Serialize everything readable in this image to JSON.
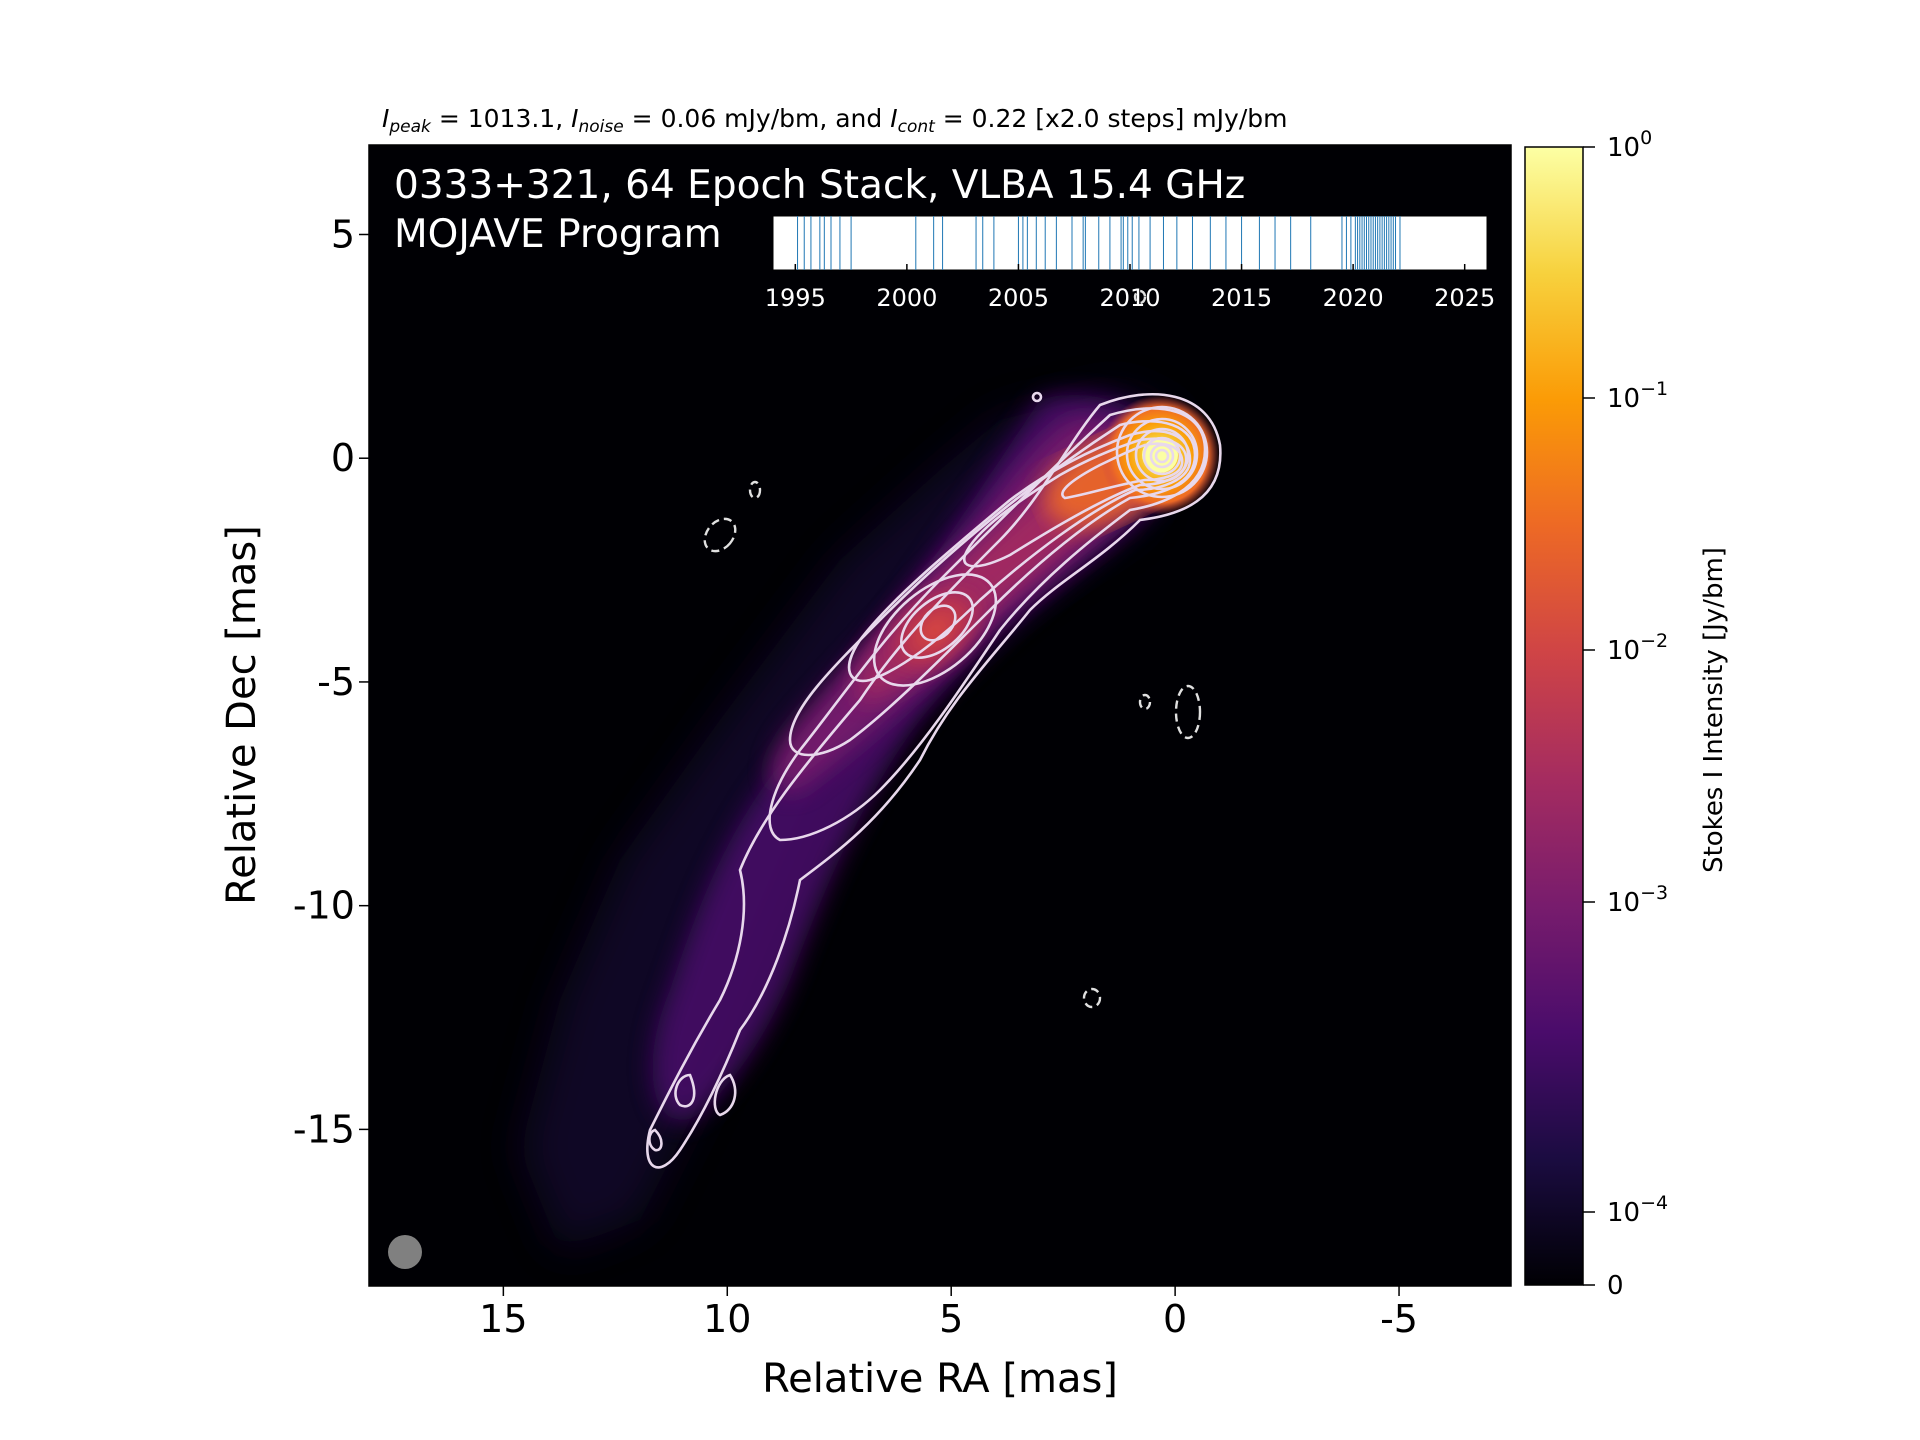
{
  "header": {
    "peak_label": "peak",
    "peak_value": "1013.1",
    "noise_label": "noise",
    "noise_value": "0.06 mJy/bm, and",
    "cont_label": "cont",
    "cont_value": "0.22 [x2.0 steps] mJy/bm"
  },
  "overlay": {
    "line1": "0333+321, 64 Epoch Stack, VLBA 15.4 GHz",
    "line2": "MOJAVE Program"
  },
  "colorbar": {
    "label": "Stokes I Intensity [Jy/bm]",
    "ticks": [
      {
        "base": "10",
        "exp": "0",
        "value": 1
      },
      {
        "base": "10",
        "exp": "−1",
        "value": 0.1
      },
      {
        "base": "10",
        "exp": "−2",
        "value": 0.01
      },
      {
        "base": "10",
        "exp": "−3",
        "value": 0.001
      },
      {
        "base": "10",
        "exp": "−4",
        "value": 0.0001
      },
      {
        "base": "0",
        "exp": "",
        "value": 0
      }
    ],
    "colors": [
      "#000004",
      "#1b0c41",
      "#4a0c6b",
      "#781c6d",
      "#a52c60",
      "#cf4446",
      "#ed6925",
      "#fb9b06",
      "#f7d13d",
      "#fcffa4"
    ]
  },
  "chart_data": [
    {
      "type": "heatmap",
      "title": "0333+321, 64 Epoch Stack, VLBA 15.4 GHz",
      "xlabel": "Relative RA [mas]",
      "ylabel": "Relative Dec [mas]",
      "xlim": [
        18,
        -7.5
      ],
      "ylim": [
        -18.5,
        7
      ],
      "x_ticks": [
        15,
        10,
        5,
        0,
        -5
      ],
      "y_ticks": [
        5,
        0,
        -5,
        -10,
        -15
      ],
      "x_tick_labels": [
        "15",
        "10",
        "5",
        "0",
        "-5"
      ],
      "y_tick_labels": [
        "5",
        "0",
        "-5",
        "-10",
        "-15"
      ],
      "peak_position": [
        0,
        0
      ],
      "secondary_peak": [
        5,
        -4
      ],
      "jet_ridge": [
        [
          0,
          0
        ],
        [
          1.5,
          -0.7
        ],
        [
          3,
          -1.7
        ],
        [
          5,
          -4
        ],
        [
          7.5,
          -6.5
        ],
        [
          8.5,
          -8
        ],
        [
          9.5,
          -10
        ],
        [
          10.5,
          -13.5
        ]
      ],
      "colorscale": "log, inferno",
      "units": "Jy/bm"
    },
    {
      "type": "scatter",
      "title": "",
      "xlabel": "",
      "ylabel": "",
      "xlim": [
        1994,
        2026
      ],
      "x_ticks": [
        1995,
        2000,
        2005,
        2010,
        2015,
        2020,
        2025
      ],
      "x_tick_labels": [
        "1995",
        "2000",
        "2005",
        "2010",
        "2015",
        "2020",
        "2025"
      ],
      "epochs": [
        1995.1,
        1995.7,
        1996.1,
        1996.6,
        1997.0,
        1997.5,
        2000.4,
        2001.2,
        2003.1,
        2003.9,
        2005.0,
        2005.4,
        2005.8,
        2006.2,
        2006.7,
        2007.4,
        2008.0,
        2008.6,
        2009.1,
        2009.6,
        2009.9,
        2010.4,
        2010.9,
        2011.5,
        2012.1,
        2012.8,
        2013.6,
        2014.3,
        2015.0,
        2015.8,
        2016.5,
        2017.2,
        2018.1,
        2019.5,
        2019.7,
        2019.9,
        2020.1,
        2020.2,
        2020.3,
        2020.4,
        2020.5,
        2020.6,
        2020.7,
        2020.8,
        2020.9,
        2021.0,
        2021.1,
        2021.2,
        2021.3,
        2021.4,
        2021.5,
        2021.6,
        2021.7,
        2021.8,
        2021.9,
        2022.1,
        2009.7,
        2010.1,
        2005.2,
        2003.4,
        2001.6,
        1996.3,
        1995.4,
        2007.9
      ]
    }
  ]
}
